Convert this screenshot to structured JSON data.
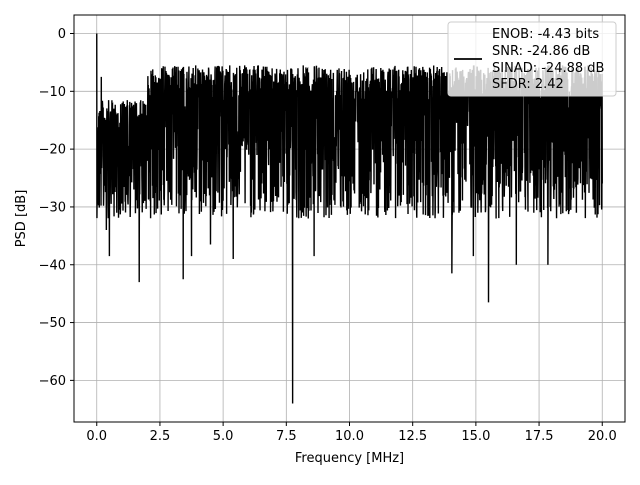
{
  "chart_data": {
    "type": "line",
    "title": "",
    "xlabel": "Frequency [MHz]",
    "ylabel": "PSD [dB]",
    "xlim": [
      -0.9,
      20.9
    ],
    "ylim": [
      -67.2,
      3.2
    ],
    "xticks": [
      0.0,
      2.5,
      5.0,
      7.5,
      10.0,
      12.5,
      15.0,
      17.5,
      20.0
    ],
    "xtick_labels": [
      "0.0",
      "2.5",
      "5.0",
      "7.5",
      "10.0",
      "12.5",
      "15.0",
      "17.5",
      "20.0"
    ],
    "yticks": [
      0,
      -10,
      -20,
      -30,
      -40,
      -50,
      -60
    ],
    "ytick_labels": [
      "0",
      "−10",
      "−20",
      "−30",
      "−40",
      "−50",
      "−60"
    ],
    "grid": true,
    "legend_position": "top-right",
    "legend_lines": [
      "ENOB: -4.43 bits",
      "SNR: -24.86 dB",
      "SINAD: -24.88 dB",
      "SFDR: 2.42"
    ],
    "series_color": "#000000",
    "noise_floor": {
      "x_range": [
        0.0,
        20.0
      ],
      "upper_db": -5.5,
      "lower_db": -30.0
    },
    "notable_points": [
      {
        "x": 0.0,
        "y": 0.0
      },
      {
        "x": 0.05,
        "y": -22.5
      },
      {
        "x": 0.18,
        "y": -7.5
      },
      {
        "x": 0.38,
        "y": -34.0
      },
      {
        "x": 0.5,
        "y": -38.5
      },
      {
        "x": 1.68,
        "y": -43.0
      },
      {
        "x": 3.42,
        "y": -42.5
      },
      {
        "x": 3.75,
        "y": -38.5
      },
      {
        "x": 4.5,
        "y": -36.5
      },
      {
        "x": 5.4,
        "y": -39.0
      },
      {
        "x": 7.75,
        "y": -64.0
      },
      {
        "x": 8.6,
        "y": -38.5
      },
      {
        "x": 14.05,
        "y": -41.5
      },
      {
        "x": 14.9,
        "y": -38.5
      },
      {
        "x": 15.5,
        "y": -46.5
      },
      {
        "x": 16.6,
        "y": -40.0
      },
      {
        "x": 17.85,
        "y": -40.0
      }
    ]
  }
}
